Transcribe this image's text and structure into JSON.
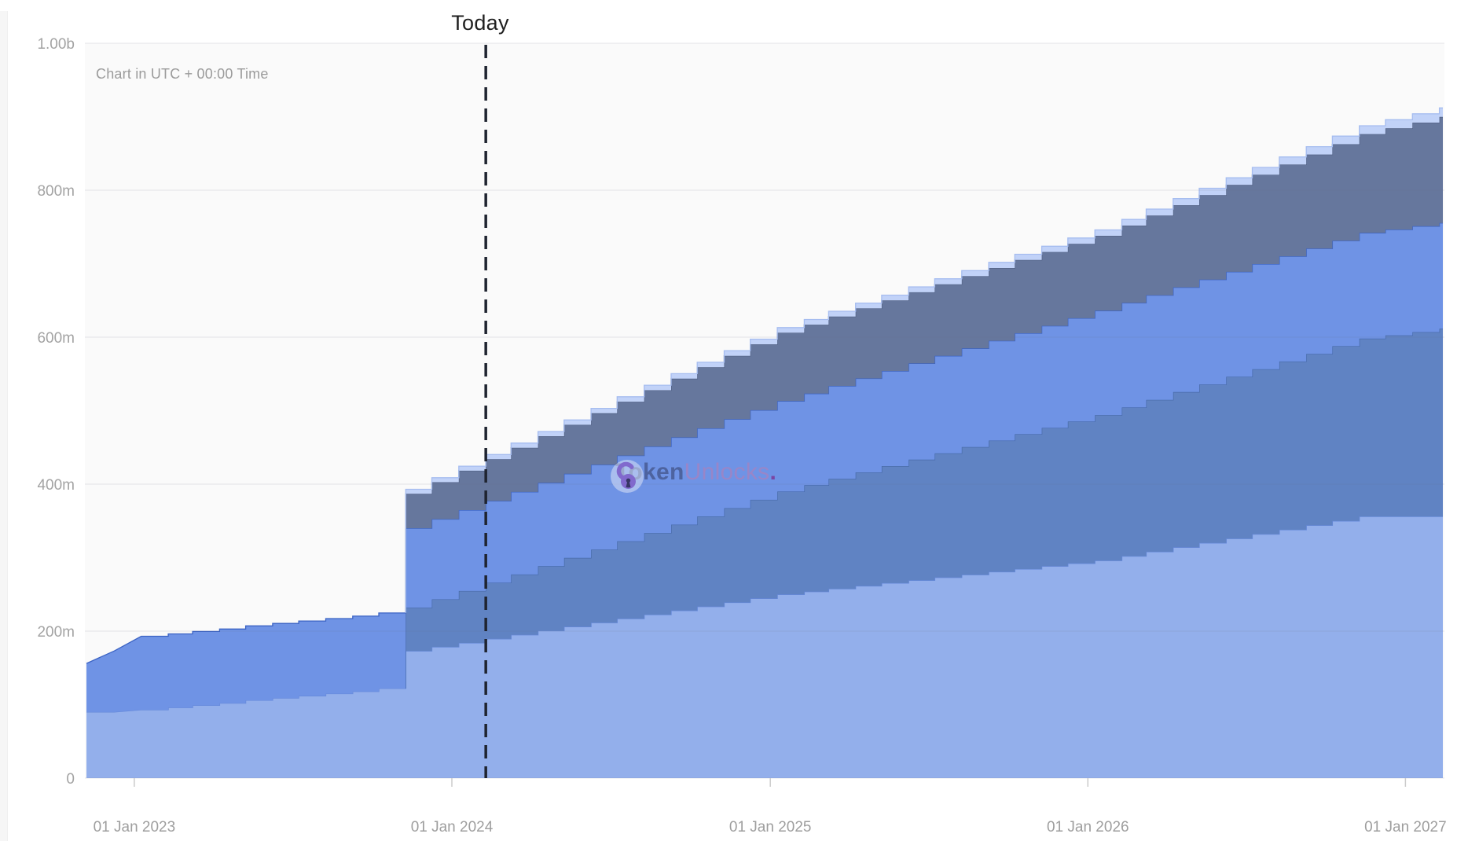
{
  "header": {
    "today_label": "Today",
    "timezone_note": "Chart in UTC + 00:00 Time"
  },
  "watermark": {
    "icon": "open-padlock-icon",
    "brand_first": "Token",
    "brand_second": "Unlocks",
    "brand_dot": ".",
    "icon_color": "#8366cb",
    "first_color": "#4b5f9a",
    "second_color": "#9c85c6",
    "dot_color": "#7c3f9e"
  },
  "chart_data": {
    "type": "area",
    "variant": "stacked-stepped-unlock-schedule",
    "title": "",
    "unit": "tokens (millions)",
    "grid": "horizontal-only",
    "legend": "none",
    "plot_bg": "#fafafa",
    "ylim": [
      0,
      1000
    ],
    "y_ticks": [
      {
        "label": "0",
        "value": 0
      },
      {
        "label": "200m",
        "value": 200
      },
      {
        "label": "400m",
        "value": 400
      },
      {
        "label": "600m",
        "value": 600
      },
      {
        "label": "800m",
        "value": 800
      },
      {
        "label": "1.00b",
        "value": 1000
      }
    ],
    "x_axis": {
      "day0_date": "2022-11-07",
      "domain_days": [
        0,
        1559
      ],
      "ticks": [
        {
          "label": "01 Jan 2023",
          "day": 55
        },
        {
          "label": "01 Jan 2024",
          "day": 420
        },
        {
          "label": "01 Jan 2025",
          "day": 786
        },
        {
          "label": "01 Jan 2026",
          "day": 1151
        },
        {
          "label": "01 Jan 2027",
          "day": 1516
        }
      ]
    },
    "today": {
      "label": "Today",
      "day": 459,
      "date": "2024-02-09",
      "line_color": "#1f2430"
    },
    "cliff": {
      "day": 367,
      "date": "2023-11-09",
      "total_before": 224.7,
      "total_after": 393
    },
    "days": [
      0,
      32,
      63,
      94,
      122,
      153,
      183,
      214,
      244,
      275,
      306,
      336,
      367,
      397,
      428,
      459,
      488,
      519,
      549,
      580,
      610,
      641,
      672,
      702,
      733,
      763,
      794,
      825,
      853,
      884,
      914,
      945,
      975,
      1006,
      1037,
      1067,
      1098,
      1128,
      1159,
      1190,
      1218,
      1249,
      1279,
      1310,
      1340,
      1371,
      1402,
      1432,
      1463,
      1493,
      1524,
      1555
    ],
    "ramp_points": [
      1,
      2
    ],
    "series": [
      {
        "name": "layer-1-light-periwinkle",
        "fill": "#93afeb",
        "stroke": "#6689da",
        "values": [
          90,
          90,
          93,
          96,
          99,
          102,
          106,
          109,
          112,
          115,
          118,
          122,
          173,
          178.5,
          184,
          189.5,
          195,
          200.5,
          206,
          211.5,
          217,
          222.5,
          228,
          233.5,
          239,
          244.5,
          250,
          253.8,
          257.7,
          261.5,
          265.3,
          269.2,
          273,
          276.8,
          280.7,
          284.5,
          288.3,
          292.2,
          296,
          302,
          308,
          314,
          320,
          326,
          332,
          338,
          344,
          350,
          356,
          356,
          356,
          356
        ]
      },
      {
        "name": "layer-2-steel-blue",
        "fill": "#6083c3",
        "stroke": "#476aa8",
        "values": [
          0,
          0,
          0,
          0,
          0,
          0,
          0,
          0,
          0,
          0,
          0,
          0,
          59,
          64.8,
          70.6,
          76.4,
          82.1,
          87.9,
          93.7,
          99.5,
          105.3,
          111.1,
          116.9,
          122.6,
          128.4,
          134.2,
          140,
          144.8,
          149.7,
          154.5,
          159.3,
          164.2,
          169,
          173.8,
          178.7,
          183.5,
          188.3,
          193.2,
          198,
          202.4,
          206.8,
          211.3,
          215.7,
          220.1,
          224.5,
          228.9,
          233.3,
          237.8,
          242.2,
          246.6,
          251,
          255.4
        ]
      },
      {
        "name": "layer-3-royal-blue",
        "fill": "#6f93e5",
        "stroke": "#3b63c4",
        "values": [
          66,
          83,
          100,
          100.3,
          100.6,
          100.9,
          101.2,
          101.5,
          101.8,
          102.1,
          102.4,
          102.7,
          108,
          109.1,
          110.1,
          111.2,
          112.3,
          113.4,
          114.4,
          115.5,
          116.6,
          117.6,
          118.7,
          119.8,
          120.9,
          121.9,
          123,
          124.6,
          126.2,
          127.8,
          129.3,
          130.9,
          132.5,
          134.1,
          135.7,
          137.3,
          138.8,
          140.4,
          142,
          142.2,
          142.3,
          142.5,
          142.7,
          142.8,
          143,
          143.2,
          143.3,
          143.5,
          143.7,
          143.8,
          144,
          144
        ]
      },
      {
        "name": "layer-4-slate-blue",
        "fill": "#66779d",
        "stroke": "#4f5f82",
        "values": [
          0,
          0,
          0,
          0,
          0,
          0,
          0,
          0,
          0,
          0,
          0,
          0,
          47,
          50.3,
          53.6,
          56.9,
          60.1,
          63.4,
          66.7,
          70,
          73.3,
          76.6,
          79.9,
          83.1,
          86.4,
          89.7,
          93,
          93.8,
          94.5,
          95.3,
          96,
          96.8,
          97.5,
          98.3,
          99,
          99.8,
          100.5,
          101.3,
          102,
          105.3,
          108.5,
          111.8,
          115,
          118.3,
          121.5,
          124.8,
          128,
          131.3,
          134.5,
          137.8,
          141,
          144.3
        ]
      },
      {
        "name": "layer-5-pale-blue-cap",
        "fill": "#c1d2f8",
        "stroke": "#a6bdf0",
        "values": [
          0,
          0,
          0,
          0,
          0,
          0,
          0,
          0,
          0,
          0,
          0,
          0,
          6,
          6.1,
          6.2,
          6.3,
          6.4,
          6.5,
          6.6,
          6.6,
          6.7,
          6.8,
          6.9,
          6.9,
          7,
          7,
          7,
          7.1,
          7.2,
          7.3,
          7.3,
          7.4,
          7.5,
          7.6,
          7.7,
          7.7,
          7.8,
          7.9,
          8,
          8.3,
          8.7,
          9,
          9.3,
          9.7,
          10,
          10.3,
          10.7,
          11,
          11.3,
          11.7,
          12,
          12.3
        ]
      }
    ]
  }
}
